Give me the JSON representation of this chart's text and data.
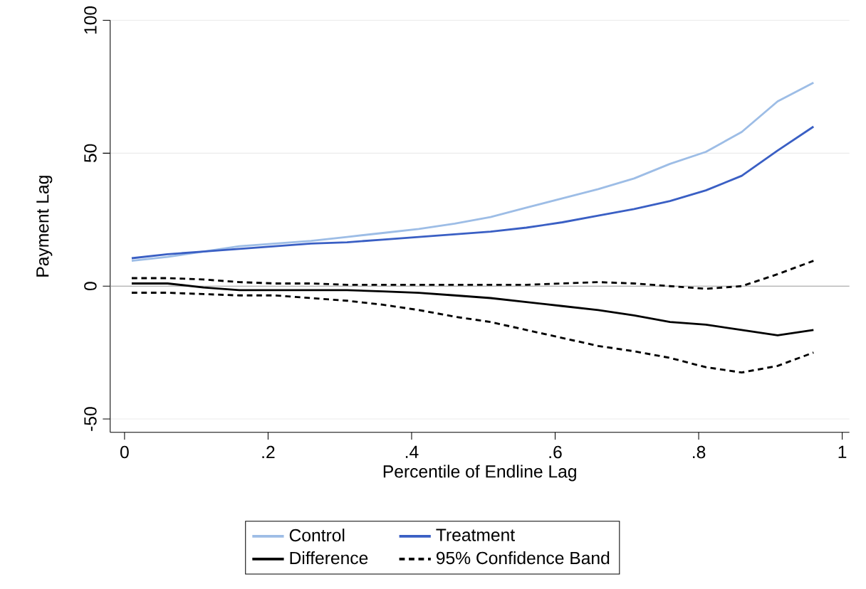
{
  "chart_data": {
    "type": "line",
    "xlabel": "Percentile of Endline Lag",
    "ylabel": "Payment Lag",
    "x": [
      0.01,
      0.06,
      0.11,
      0.16,
      0.21,
      0.26,
      0.31,
      0.36,
      0.41,
      0.46,
      0.51,
      0.56,
      0.61,
      0.66,
      0.71,
      0.76,
      0.81,
      0.86,
      0.91,
      0.96
    ],
    "series": [
      {
        "name": "Control",
        "color": "#9dbde6",
        "line_style": "solid",
        "values": [
          9.5,
          11,
          13,
          15,
          16,
          17,
          18.5,
          20,
          21.5,
          23.5,
          26,
          29.5,
          33,
          36.5,
          40.5,
          46,
          50.5,
          58,
          69.5,
          76.5
        ]
      },
      {
        "name": "Treatment",
        "color": "#3a5fc4",
        "line_style": "solid",
        "values": [
          10.5,
          12,
          13,
          14,
          15,
          16,
          16.5,
          17.5,
          18.5,
          19.5,
          20.5,
          22,
          24,
          26.5,
          29,
          32,
          36,
          41.5,
          51,
          60
        ]
      },
      {
        "name": "Difference",
        "color": "#000000",
        "line_style": "solid",
        "values": [
          1,
          1,
          -0.5,
          -1.5,
          -1.5,
          -1.5,
          -1.5,
          -2,
          -2.5,
          -3.5,
          -4.5,
          -6,
          -7.5,
          -9,
          -11,
          -13.5,
          -14.5,
          -16.5,
          -18.5,
          -16.5
        ]
      },
      {
        "name": "95% Confidence Band",
        "color": "#000000",
        "line_style": "dashed",
        "values": [
          3,
          3,
          2.5,
          1.5,
          1,
          1,
          0.5,
          0.5,
          0.5,
          0.5,
          0.5,
          0.5,
          1,
          1.5,
          1,
          0,
          -1,
          0,
          4.5,
          9.5
        ]
      },
      {
        "color": "#000000",
        "line_style": "dashed",
        "values": [
          -2.5,
          -2.5,
          -3,
          -3.5,
          -3.5,
          -4.5,
          -5.5,
          -7,
          -9,
          -11.5,
          -13.5,
          -16.5,
          -19.5,
          -22.5,
          -24.5,
          -27,
          -30.5,
          -32.5,
          -30,
          -25
        ]
      }
    ],
    "xlim": [
      -0.02,
      1.01
    ],
    "ylim": [
      -55,
      100
    ],
    "xticks": [
      0,
      {
        "value": 0.2,
        "label": ".2"
      },
      {
        "value": 0.4,
        "label": ".4"
      },
      {
        "value": 0.6,
        "label": ".6"
      },
      {
        "value": 0.8,
        "label": ".8"
      },
      1
    ],
    "yticks": [
      -50,
      0,
      50,
      100
    ],
    "ref_lines": [
      {
        "axis": "y",
        "value": 0,
        "color": "#a0a0a0"
      }
    ],
    "grid": "y",
    "legend": "bottom"
  }
}
